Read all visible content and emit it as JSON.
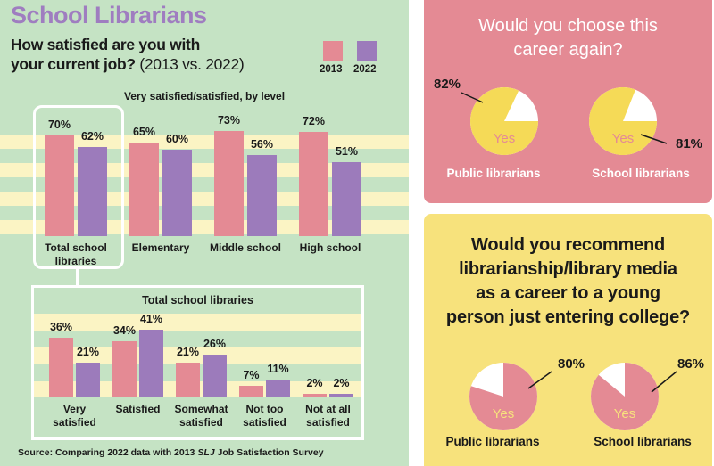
{
  "colors": {
    "c2013": "#e48a94",
    "c2022": "#9c7bbb",
    "green_bg": "#c5e3c4",
    "stripe": "#fbf4c4",
    "pink_panel": "#e48a94",
    "yellow_panel": "#f7e27c",
    "pie_yellow": "#f5da57",
    "pie_pink": "#e48a94"
  },
  "left": {
    "title": "School Librarians",
    "question_line1": "How satisfied are you with",
    "question_line2": "your current job?",
    "question_years": "(2013 vs. 2022)",
    "legend": [
      {
        "label": "2013"
      },
      {
        "label": "2022"
      }
    ],
    "source_prefix": "Source: Comparing 2022 data with 2013 ",
    "source_italic": "SLJ",
    "source_suffix": " Job Satisfaction Survey"
  },
  "chart_data": [
    {
      "type": "bar",
      "title": "Very satisfied/satisfied, by level",
      "categories": [
        "Total school libraries",
        "Elementary",
        "Middle school",
        "High school"
      ],
      "series": [
        {
          "name": "2013",
          "values": [
            70,
            65,
            73,
            72
          ],
          "labels": [
            "70%",
            "65%",
            "73%",
            "72%"
          ]
        },
        {
          "name": "2022",
          "values": [
            62,
            60,
            56,
            51
          ],
          "labels": [
            "62%",
            "60%",
            "56%",
            "51%"
          ]
        }
      ],
      "ylim": [
        0,
        75
      ],
      "grid": "horizontal-bands"
    },
    {
      "type": "bar",
      "title": "Total school libraries",
      "categories": [
        "Very satisfied",
        "Satisfied",
        "Somewhat satisfied",
        "Not too satisfied",
        "Not at all satisfied"
      ],
      "series": [
        {
          "name": "2013",
          "values": [
            36,
            34,
            21,
            7,
            2
          ],
          "labels": [
            "36%",
            "34%",
            "21%",
            "7%",
            "2%"
          ]
        },
        {
          "name": "2022",
          "values": [
            21,
            41,
            26,
            11,
            2
          ],
          "labels": [
            "21%",
            "41%",
            "26%",
            "11%",
            "2%"
          ]
        }
      ],
      "ylim": [
        0,
        45
      ],
      "grid": "horizontal-bands"
    },
    {
      "type": "pie",
      "title": "Would you choose this career again?",
      "pies": [
        {
          "name": "Public librarians",
          "yes": 82,
          "label": "82%",
          "slice_label": "Yes"
        },
        {
          "name": "School librarians",
          "yes": 81,
          "label": "81%",
          "slice_label": "Yes"
        }
      ]
    },
    {
      "type": "pie",
      "title": "Would you recommend librarianship/library media as a career to a young person just entering college?",
      "title_lines": [
        "Would you recommend",
        "librarianship/library media",
        "as a career to a young",
        "person just entering college?"
      ],
      "pies": [
        {
          "name": "Public librarians",
          "yes": 80,
          "label": "80%",
          "slice_label": "Yes"
        },
        {
          "name": "School librarians",
          "yes": 86,
          "label": "86%",
          "slice_label": "Yes"
        }
      ]
    }
  ],
  "top_right": {
    "title_lines": [
      "Would you choose this",
      "career again?"
    ]
  }
}
